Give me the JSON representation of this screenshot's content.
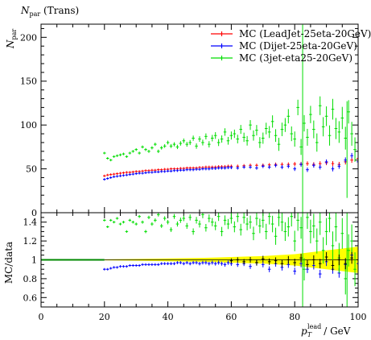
{
  "chart_data": [
    {
      "type": "scatter",
      "title": "N_par (Trans)",
      "title_main": "N",
      "title_sub": "par",
      "title_suffix": "(Trans)",
      "ylabel_main": "N",
      "ylabel_sub": "par",
      "xlim": [
        0,
        100
      ],
      "ylim": [
        0,
        215
      ],
      "yticks": [
        0,
        50,
        100,
        150,
        200
      ],
      "legend": "top-right",
      "series": [
        {
          "name": "MC (LeadJet-25eta-20GeV)",
          "color": "#ff0000",
          "x": [
            20,
            21,
            22,
            23,
            24,
            25,
            26,
            27,
            28,
            29,
            30,
            31,
            32,
            33,
            34,
            35,
            36,
            37,
            38,
            39,
            40,
            41,
            42,
            43,
            44,
            45,
            46,
            47,
            48,
            49,
            50,
            51,
            52,
            53,
            54,
            55,
            56,
            57,
            58,
            59,
            60,
            62,
            64,
            66,
            68,
            70,
            72,
            74,
            76,
            78,
            80,
            82,
            84,
            86,
            88,
            90,
            92,
            94,
            96,
            98,
            100
          ],
          "y": [
            42,
            43,
            43.5,
            44,
            44.5,
            45,
            45.5,
            46,
            46,
            46.5,
            47,
            47,
            47.5,
            48,
            48,
            48.5,
            48.5,
            49,
            49,
            49.5,
            49.5,
            50,
            50,
            50,
            50.5,
            50.5,
            51,
            51,
            51,
            51,
            51.5,
            51.5,
            52,
            52,
            52,
            52,
            52.5,
            52.5,
            52.5,
            53,
            53,
            53,
            53.5,
            54,
            54,
            54,
            54.5,
            55,
            55,
            55,
            55.5,
            55.5,
            56,
            55,
            56,
            57,
            56,
            55,
            58,
            60,
            62
          ]
        },
        {
          "name": "MC (Dijet-25eta-20GeV)",
          "color": "#0000ff",
          "x": [
            20,
            21,
            22,
            23,
            24,
            25,
            26,
            27,
            28,
            29,
            30,
            31,
            32,
            33,
            34,
            35,
            36,
            37,
            38,
            39,
            40,
            41,
            42,
            43,
            44,
            45,
            46,
            47,
            48,
            49,
            50,
            51,
            52,
            53,
            54,
            55,
            56,
            57,
            58,
            59,
            60,
            62,
            64,
            66,
            68,
            70,
            72,
            74,
            76,
            78,
            80,
            82,
            84,
            86,
            88,
            90,
            92,
            94,
            96,
            98,
            100
          ],
          "y": [
            38,
            39,
            40,
            41,
            41.5,
            42,
            42.5,
            43,
            43.5,
            44,
            44.5,
            45,
            45,
            45.5,
            46,
            46,
            46.5,
            46.5,
            47,
            47,
            47.5,
            47.5,
            48,
            48,
            48.5,
            48.5,
            49,
            49,
            49,
            49.5,
            49.5,
            50,
            50,
            50,
            50.5,
            50.5,
            51,
            51,
            51,
            51.5,
            51.5,
            51,
            52,
            52,
            51,
            53,
            52,
            54,
            52,
            53,
            50,
            55,
            49,
            54,
            52,
            58,
            50,
            53,
            60,
            65,
            58
          ]
        },
        {
          "name": "MC (3jet-eta25-20GeV)",
          "color": "#00dd00",
          "x": [
            20,
            21,
            22,
            23,
            24,
            25,
            26,
            27,
            28,
            29,
            30,
            31,
            32,
            33,
            34,
            35,
            36,
            37,
            38,
            39,
            40,
            41,
            42,
            43,
            44,
            45,
            46,
            47,
            48,
            49,
            50,
            51,
            52,
            53,
            54,
            55,
            56,
            57,
            58,
            59,
            60,
            61,
            62,
            63,
            64,
            65,
            66,
            67,
            68,
            69,
            70,
            71,
            72,
            73,
            74,
            75,
            76,
            77,
            78,
            79,
            80,
            81,
            82,
            83,
            84,
            85,
            86,
            87,
            88,
            89,
            90,
            91,
            92,
            93,
            94,
            95,
            96,
            97,
            98,
            99
          ],
          "y": [
            68,
            62,
            60,
            64,
            65,
            66,
            67,
            64,
            68,
            70,
            72,
            68,
            75,
            72,
            70,
            74,
            78,
            70,
            74,
            76,
            80,
            76,
            78,
            75,
            79,
            82,
            78,
            80,
            85,
            76,
            84,
            80,
            87,
            78,
            85,
            88,
            80,
            84,
            92,
            82,
            88,
            90,
            84,
            95,
            86,
            82,
            100,
            88,
            94,
            80,
            85,
            96,
            92,
            104,
            88,
            78,
            95,
            100,
            110,
            90,
            84,
            120,
            75,
            102,
            86,
            112,
            95,
            80,
            122,
            98,
            110,
            88,
            118,
            96,
            92,
            108,
            85,
            115,
            90,
            72
          ]
        }
      ]
    },
    {
      "type": "scatter",
      "ylabel": "MC/data",
      "xlabel_main": "p",
      "xlabel_sub": "T",
      "xlabel_sup": "lead",
      "xlabel_unit": "/ GeV",
      "xlim": [
        0,
        100
      ],
      "ylim": [
        0.5,
        1.5
      ],
      "yticks": [
        0.6,
        0.8,
        1,
        1.2,
        1.4
      ],
      "xticks": [
        0,
        20,
        40,
        60,
        80,
        100
      ],
      "band": {
        "color": "#ffff00",
        "x": [
          20,
          30,
          40,
          50,
          55,
          60,
          65,
          70,
          75,
          80,
          85,
          90,
          95,
          100
        ],
        "lo": [
          0.995,
          0.99,
          0.985,
          0.98,
          0.975,
          0.97,
          0.965,
          0.96,
          0.95,
          0.94,
          0.92,
          0.9,
          0.88,
          0.86
        ],
        "hi": [
          1.005,
          1.01,
          1.015,
          1.02,
          1.025,
          1.03,
          1.035,
          1.04,
          1.05,
          1.06,
          1.08,
          1.1,
          1.12,
          1.14
        ]
      },
      "series": [
        {
          "name": "",
          "color": "#0000ff",
          "x": [
            20,
            21,
            22,
            23,
            24,
            25,
            26,
            27,
            28,
            29,
            30,
            31,
            32,
            33,
            34,
            35,
            36,
            37,
            38,
            39,
            40,
            41,
            42,
            43,
            44,
            45,
            46,
            47,
            48,
            49,
            50,
            51,
            52,
            53,
            54,
            55,
            56,
            57,
            58,
            59,
            60,
            62,
            64,
            66,
            68,
            70,
            72,
            74,
            76,
            78,
            80,
            82,
            84,
            86,
            88,
            90,
            92,
            94,
            96,
            98,
            100
          ],
          "y": [
            0.9,
            0.9,
            0.91,
            0.92,
            0.92,
            0.93,
            0.93,
            0.93,
            0.94,
            0.94,
            0.94,
            0.94,
            0.95,
            0.95,
            0.95,
            0.95,
            0.95,
            0.95,
            0.96,
            0.96,
            0.96,
            0.96,
            0.96,
            0.97,
            0.97,
            0.96,
            0.97,
            0.96,
            0.97,
            0.97,
            0.96,
            0.97,
            0.97,
            0.96,
            0.97,
            0.96,
            0.97,
            0.96,
            0.95,
            0.97,
            0.96,
            0.95,
            0.96,
            0.93,
            0.97,
            0.95,
            0.9,
            0.96,
            0.92,
            0.95,
            0.88,
            0.96,
            0.9,
            0.94,
            0.85,
            0.98,
            0.9,
            0.86,
            0.95,
            1.05,
            0.96
          ]
        },
        {
          "name": "",
          "color": "#00dd00",
          "x": [
            20,
            21,
            22,
            23,
            24,
            25,
            26,
            27,
            28,
            29,
            30,
            31,
            32,
            33,
            34,
            35,
            36,
            37,
            38,
            39,
            40,
            41,
            42,
            43,
            44,
            45,
            46,
            47,
            48,
            49,
            50,
            51,
            52,
            53,
            54,
            55,
            56,
            57,
            58,
            59,
            60,
            61,
            62,
            63,
            64,
            65,
            66,
            67,
            68,
            69,
            70,
            71,
            72,
            73,
            74,
            75,
            76,
            77,
            78,
            79,
            80,
            81,
            82,
            83,
            84,
            85,
            86,
            87,
            88,
            89,
            90,
            91,
            92,
            93,
            94,
            95,
            96,
            97,
            98,
            99
          ],
          "y": [
            1.42,
            1.35,
            1.42,
            1.4,
            1.44,
            1.38,
            1.4,
            1.3,
            1.42,
            1.4,
            1.38,
            1.46,
            1.4,
            1.3,
            1.45,
            1.38,
            1.42,
            1.48,
            1.36,
            1.44,
            1.4,
            1.32,
            1.46,
            1.38,
            1.42,
            1.44,
            1.36,
            1.45,
            1.3,
            1.42,
            1.38,
            1.48,
            1.34,
            1.44,
            1.4,
            1.36,
            1.46,
            1.3,
            1.42,
            1.38,
            1.44,
            1.35,
            1.46,
            1.32,
            1.45,
            1.38,
            1.4,
            1.28,
            1.44,
            1.36,
            1.42,
            1.3,
            1.46,
            1.38,
            1.25,
            1.45,
            1.4,
            1.3,
            1.35,
            1.46,
            1.2,
            1.42,
            1.34,
            0.9,
            1.45,
            1.3,
            1.36,
            1.2,
            1.4,
            1.1,
            1.3,
            1.44,
            1.15,
            1.35,
            1.02,
            1.28,
            0.8,
            1.1,
            1.2,
            0.9
          ]
        },
        {
          "name": "",
          "color": "#000000",
          "x": [
            60,
            62,
            64,
            66,
            68,
            70,
            72,
            74,
            76,
            78,
            80,
            82,
            84,
            86,
            88,
            90,
            92,
            94,
            96,
            98,
            100
          ],
          "y": [
            0.99,
            1.0,
            0.98,
            1.0,
            0.97,
            1.01,
            0.98,
            0.99,
            0.96,
            1.0,
            0.97,
            1.02,
            0.95,
            1.0,
            0.96,
            1.03,
            0.94,
            1.0,
            0.96,
            1.02,
            1.0
          ]
        }
      ]
    }
  ]
}
